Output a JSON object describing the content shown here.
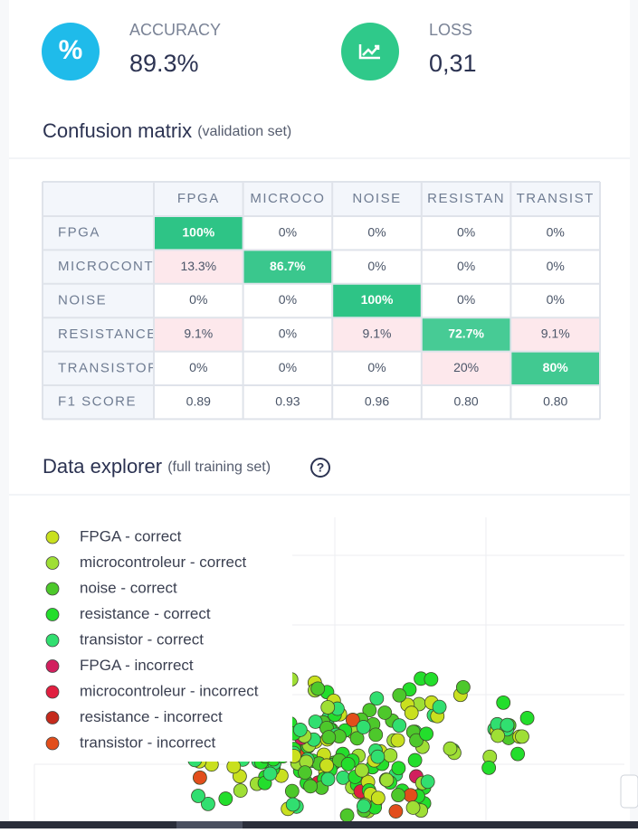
{
  "stats": [
    {
      "icon": "%",
      "label": "ACCURACY",
      "value": "89.3%"
    },
    {
      "label": "LOSS",
      "value": "0,31"
    }
  ],
  "confusion_matrix": {
    "title": "Confusion matrix",
    "subtitle": "(validation set)",
    "columns": [
      "FPGA",
      "MICROCO",
      "NOISE",
      "RESISTAN",
      "TRANSIST"
    ],
    "rows": [
      {
        "label": "FPGA",
        "cells": [
          "100%",
          "0%",
          "0%",
          "0%",
          "0%"
        ]
      },
      {
        "label": "MICROCONT",
        "cells": [
          "13.3%",
          "86.7%",
          "0%",
          "0%",
          "0%"
        ]
      },
      {
        "label": "NOISE",
        "cells": [
          "0%",
          "0%",
          "100%",
          "0%",
          "0%"
        ]
      },
      {
        "label": "RESISTANCE",
        "cells": [
          "9.1%",
          "0%",
          "9.1%",
          "72.7%",
          "9.1%"
        ]
      },
      {
        "label": "TRANSISTOR",
        "cells": [
          "0%",
          "0%",
          "0%",
          "20%",
          "80%"
        ]
      }
    ],
    "f1_label": "F1 SCORE",
    "f1": [
      "0.89",
      "0.93",
      "0.96",
      "0.80",
      "0.80"
    ]
  },
  "data_explorer": {
    "title": "Data explorer",
    "subtitle": "(full training set)",
    "help": "?",
    "legend": [
      {
        "label": "FPGA - correct",
        "color": "#c9e01f"
      },
      {
        "label": "microcontroleur - correct",
        "color": "#9fdf35"
      },
      {
        "label": "noise - correct",
        "color": "#4dc82b"
      },
      {
        "label": "resistance - correct",
        "color": "#23de2c"
      },
      {
        "label": "transistor - correct",
        "color": "#31df70"
      },
      {
        "label": "FPGA - incorrect",
        "color": "#d21f5e"
      },
      {
        "label": "microcontroleur - incorrect",
        "color": "#e11f40"
      },
      {
        "label": "resistance - incorrect",
        "color": "#c52a1c"
      },
      {
        "label": "transistor - incorrect",
        "color": "#e24e1b"
      }
    ]
  }
}
